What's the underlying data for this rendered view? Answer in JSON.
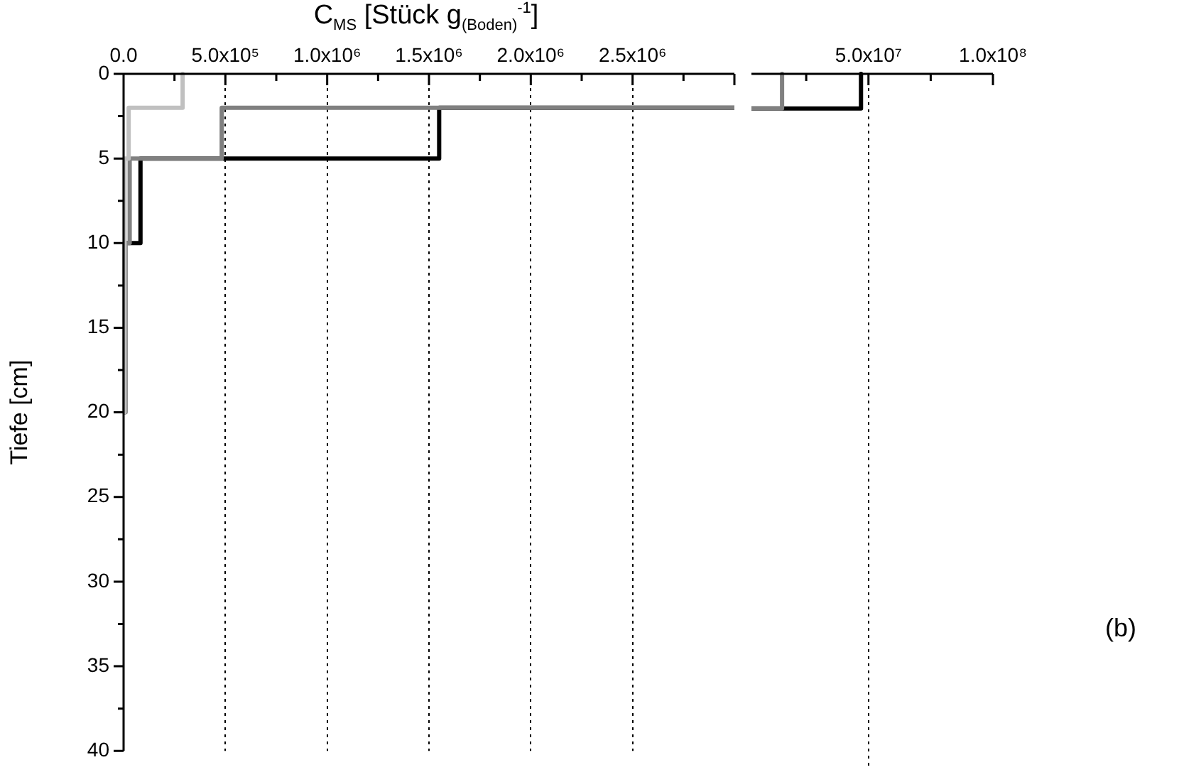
{
  "chart_data": [
    {
      "type": "line",
      "xlabel": "C$_{MS}$ [Stück g$_{(Boden)}$$^{-1}$]",
      "ylabel": "Tiefe [cm]",
      "xlim": [
        0,
        3000000
      ],
      "ylim": [
        40,
        0
      ],
      "xticks": [
        {
          "value": 0,
          "label": "0.0"
        },
        {
          "value": 250000,
          "label": null
        },
        {
          "value": 500000,
          "label": "5.0x10⁵"
        },
        {
          "value": 750000,
          "label": null
        },
        {
          "value": 1000000,
          "label": "1.0x10⁶"
        },
        {
          "value": 1250000,
          "label": null
        },
        {
          "value": 1500000,
          "label": "1.5x10⁶"
        },
        {
          "value": 1750000,
          "label": null
        },
        {
          "value": 2000000,
          "label": "2.0x10⁶"
        },
        {
          "value": 2250000,
          "label": null
        },
        {
          "value": 2500000,
          "label": "2.5x10⁶"
        },
        {
          "value": 2750000,
          "label": null
        }
      ],
      "yticks": [
        0,
        {
          "value": 2.5,
          "label": null
        },
        5,
        {
          "value": 7.5,
          "label": null
        },
        10,
        {
          "value": 12.5,
          "label": null
        },
        15,
        {
          "value": 17.5,
          "label": null
        },
        20,
        {
          "value": 22.5,
          "label": null
        },
        25,
        {
          "value": 27.5,
          "label": null
        },
        30,
        {
          "value": 32.5,
          "label": null
        },
        35,
        {
          "value": 37.5,
          "label": null
        },
        40
      ],
      "grid": "x",
      "legend": false,
      "marker": "none",
      "series": [
        {
          "color": "#000000",
          "x": [
            3000000,
            1550000,
            1550000,
            83000,
            83000,
            5000,
            5000
          ],
          "values": [
            2,
            2,
            5,
            5,
            10,
            10,
            20
          ]
        },
        {
          "color": "#808080",
          "x": [
            3000000,
            482000,
            482000,
            30000,
            30000,
            10000,
            10000
          ],
          "values": [
            2,
            2,
            5,
            5,
            10,
            10,
            20
          ]
        },
        {
          "color": "#c0c0c0",
          "x": [
            290000,
            290000,
            25000,
            25000,
            5000,
            5000
          ],
          "values": [
            0,
            2,
            2,
            5,
            5,
            20
          ]
        }
      ]
    },
    {
      "type": "line",
      "xlim": [
        3000000,
        100000000
      ],
      "ylim": [
        40,
        0
      ],
      "tick_labels": "x",
      "xticks": [
        {
          "value": 25000000,
          "label": null
        },
        {
          "value": 50000000,
          "label": "5.0x10⁷"
        },
        {
          "value": 75000000,
          "label": null
        },
        {
          "value": 100000000,
          "label": "1.0x10⁸"
        }
      ],
      "grid": "x",
      "legend": false,
      "marker": "none",
      "annotations": [
        "(b)"
      ],
      "series": [
        {
          "color": "#000000",
          "x": [
            47000000,
            47000000,
            3000000
          ],
          "values": [
            0,
            2,
            2
          ]
        },
        {
          "color": "#808080",
          "x": [
            15300000,
            15300000,
            3000000
          ],
          "values": [
            0,
            2,
            2
          ]
        }
      ]
    }
  ]
}
